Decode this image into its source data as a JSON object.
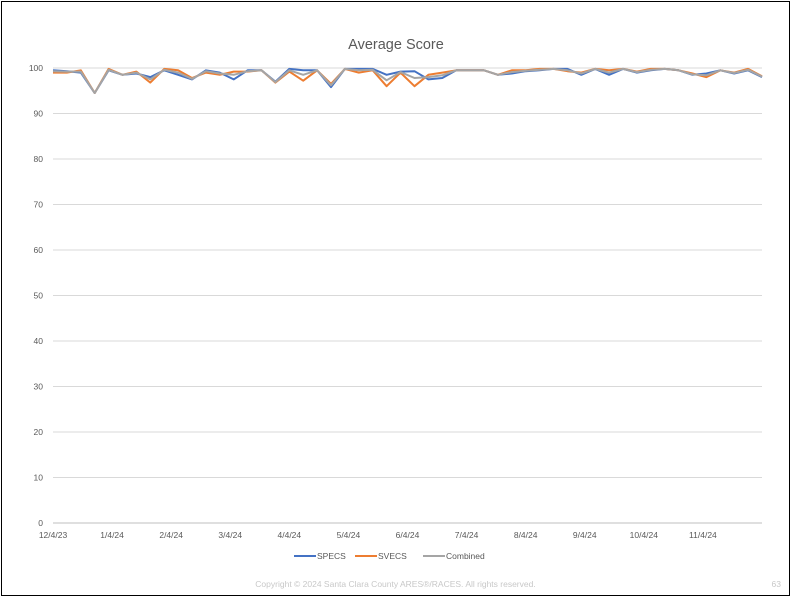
{
  "chart_data": {
    "type": "line",
    "title": "Average Score",
    "ylim": [
      0,
      100
    ],
    "yticks": [
      0,
      10,
      20,
      30,
      40,
      50,
      60,
      70,
      80,
      90,
      100
    ],
    "xtick_labels": [
      "12/4/23",
      "1/4/24",
      "2/4/24",
      "3/4/24",
      "4/4/24",
      "5/4/24",
      "6/4/24",
      "7/4/24",
      "8/4/24",
      "9/4/24",
      "10/4/24",
      "11/4/24"
    ],
    "grid": "horizontal",
    "legend": "bottom",
    "series": [
      {
        "name": "SPECS",
        "color": "#4472C4",
        "values": [
          99.5,
          99.3,
          99.0,
          94.5,
          99.5,
          98.5,
          98.8,
          98.0,
          99.5,
          98.5,
          97.5,
          99.5,
          99.0,
          97.5,
          99.5,
          99.5,
          97.0,
          99.8,
          99.5,
          99.5,
          95.8,
          99.8,
          99.8,
          99.8,
          98.5,
          99.2,
          99.3,
          97.5,
          97.8,
          99.5,
          99.5,
          99.5,
          98.5,
          98.8,
          99.3,
          99.5,
          99.8,
          99.8,
          98.5,
          99.8,
          98.5,
          99.8,
          99.0,
          99.5,
          99.8,
          99.5,
          98.5,
          98.8,
          99.5,
          98.8,
          99.5,
          98.0
        ]
      },
      {
        "name": "SVECS",
        "color": "#ED7D31",
        "values": [
          99.0,
          99.0,
          99.5,
          94.5,
          99.8,
          98.5,
          99.2,
          96.8,
          99.8,
          99.5,
          97.8,
          99.0,
          98.5,
          99.2,
          99.2,
          99.5,
          96.8,
          99.2,
          97.2,
          99.5,
          96.5,
          99.8,
          99.0,
          99.5,
          96.0,
          99.0,
          96.0,
          98.5,
          99.0,
          99.5,
          99.5,
          99.5,
          98.5,
          99.5,
          99.5,
          99.8,
          99.8,
          99.3,
          99.0,
          99.8,
          99.5,
          99.8,
          99.2,
          99.8,
          99.8,
          99.5,
          98.8,
          98.0,
          99.5,
          99.0,
          99.8,
          98.2
        ]
      },
      {
        "name": "Combined",
        "color": "#A5A5A5",
        "values": [
          99.3,
          99.2,
          99.2,
          94.5,
          99.6,
          98.5,
          99.0,
          97.5,
          99.6,
          99.0,
          97.6,
          99.3,
          98.8,
          98.5,
          99.3,
          99.5,
          96.9,
          99.5,
          98.5,
          99.5,
          96.2,
          99.8,
          99.5,
          99.6,
          97.3,
          99.1,
          97.8,
          98.0,
          98.4,
          99.5,
          99.5,
          99.5,
          98.5,
          99.1,
          99.4,
          99.6,
          99.8,
          99.5,
          98.8,
          99.8,
          99.0,
          99.8,
          99.1,
          99.6,
          99.8,
          99.5,
          98.6,
          98.4,
          99.5,
          98.9,
          99.6,
          98.1
        ]
      }
    ]
  },
  "footer": {
    "copyright": "Copyright © 2024 Santa Clara County ARES®/RACES.  All rights reserved.",
    "page_number": "63"
  }
}
